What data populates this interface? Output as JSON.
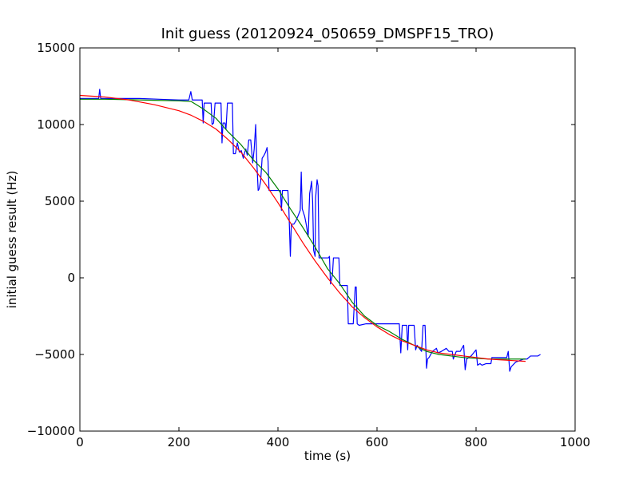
{
  "chart_data": {
    "type": "line",
    "title": "Init guess (20120924_050659_DMSPF15_TRO)",
    "xlabel": "time (s)",
    "ylabel": "initial guess result (Hz)",
    "xlim": [
      0,
      1000
    ],
    "ylim": [
      -10000,
      15000
    ],
    "xticks": [
      0,
      200,
      400,
      600,
      800,
      1000
    ],
    "yticks": [
      -10000,
      -5000,
      0,
      5000,
      10000,
      15000
    ],
    "xtick_labels": [
      "0",
      "200",
      "400",
      "600",
      "800",
      "1000"
    ],
    "ytick_labels": [
      "−10000",
      "−5000",
      "0",
      "5000",
      "10000",
      "15000"
    ],
    "grid": false,
    "legend": "none",
    "series": [
      {
        "color": "#0000ff",
        "points": [
          [
            0,
            11700
          ],
          [
            38,
            11700
          ],
          [
            40,
            12300
          ],
          [
            42,
            11700
          ],
          [
            80,
            11700
          ],
          [
            120,
            11700
          ],
          [
            160,
            11650
          ],
          [
            200,
            11600
          ],
          [
            220,
            11600
          ],
          [
            224,
            12150
          ],
          [
            227,
            11600
          ],
          [
            247,
            11600
          ],
          [
            249,
            10100
          ],
          [
            251,
            11400
          ],
          [
            265,
            11400
          ],
          [
            267,
            10000
          ],
          [
            270,
            10100
          ],
          [
            273,
            11400
          ],
          [
            285,
            11400
          ],
          [
            287,
            8800
          ],
          [
            289,
            10100
          ],
          [
            293,
            10100
          ],
          [
            295,
            9700
          ],
          [
            298,
            11400
          ],
          [
            308,
            11400
          ],
          [
            310,
            8100
          ],
          [
            314,
            8100
          ],
          [
            318,
            8800
          ],
          [
            322,
            8200
          ],
          [
            326,
            8300
          ],
          [
            330,
            7800
          ],
          [
            332,
            8100
          ],
          [
            335,
            8400
          ],
          [
            338,
            8000
          ],
          [
            341,
            9000
          ],
          [
            345,
            9000
          ],
          [
            349,
            7500
          ],
          [
            352,
            8400
          ],
          [
            355,
            10000
          ],
          [
            357,
            7800
          ],
          [
            360,
            5700
          ],
          [
            362,
            5800
          ],
          [
            365,
            6300
          ],
          [
            368,
            7800
          ],
          [
            372,
            8000
          ],
          [
            375,
            8200
          ],
          [
            378,
            8500
          ],
          [
            380,
            7600
          ],
          [
            382,
            5700
          ],
          [
            405,
            5700
          ],
          [
            407,
            4400
          ],
          [
            409,
            5700
          ],
          [
            418,
            5700
          ],
          [
            420,
            5700
          ],
          [
            422,
            4500
          ],
          [
            425,
            1400
          ],
          [
            427,
            3500
          ],
          [
            429,
            3500
          ],
          [
            432,
            3500
          ],
          [
            436,
            3700
          ],
          [
            440,
            4000
          ],
          [
            445,
            4400
          ],
          [
            447,
            6900
          ],
          [
            449,
            4500
          ],
          [
            454,
            4000
          ],
          [
            457,
            3500
          ],
          [
            461,
            2700
          ],
          [
            464,
            5500
          ],
          [
            468,
            6300
          ],
          [
            470,
            5000
          ],
          [
            472,
            1800
          ],
          [
            475,
            1400
          ],
          [
            476,
            5200
          ],
          [
            479,
            6400
          ],
          [
            481,
            6000
          ],
          [
            483,
            1300
          ],
          [
            499,
            1300
          ],
          [
            502,
            1300
          ],
          [
            504,
            1400
          ],
          [
            506,
            -400
          ],
          [
            510,
            200
          ],
          [
            512,
            1300
          ],
          [
            523,
            1300
          ],
          [
            525,
            -500
          ],
          [
            527,
            -500
          ],
          [
            540,
            -500
          ],
          [
            542,
            -3000
          ],
          [
            552,
            -3000
          ],
          [
            556,
            -600
          ],
          [
            558,
            -600
          ],
          [
            560,
            -3000
          ],
          [
            564,
            -3100
          ],
          [
            578,
            -3000
          ],
          [
            620,
            -3000
          ],
          [
            645,
            -3000
          ],
          [
            648,
            -4900
          ],
          [
            651,
            -3100
          ],
          [
            660,
            -3100
          ],
          [
            662,
            -4700
          ],
          [
            664,
            -3100
          ],
          [
            675,
            -3100
          ],
          [
            678,
            -4700
          ],
          [
            681,
            -4400
          ],
          [
            690,
            -4800
          ],
          [
            693,
            -3100
          ],
          [
            697,
            -3100
          ],
          [
            700,
            -5900
          ],
          [
            702,
            -5300
          ],
          [
            705,
            -5200
          ],
          [
            712,
            -4800
          ],
          [
            720,
            -4600
          ],
          [
            723,
            -4900
          ],
          [
            730,
            -4800
          ],
          [
            740,
            -4600
          ],
          [
            745,
            -4800
          ],
          [
            752,
            -4800
          ],
          [
            754,
            -5300
          ],
          [
            760,
            -4800
          ],
          [
            768,
            -4800
          ],
          [
            775,
            -4400
          ],
          [
            778,
            -6000
          ],
          [
            781,
            -5300
          ],
          [
            785,
            -5200
          ],
          [
            790,
            -5100
          ],
          [
            800,
            -4700
          ],
          [
            803,
            -5700
          ],
          [
            808,
            -5600
          ],
          [
            812,
            -5700
          ],
          [
            820,
            -5600
          ],
          [
            830,
            -5600
          ],
          [
            832,
            -5200
          ],
          [
            862,
            -5200
          ],
          [
            865,
            -4800
          ],
          [
            868,
            -6100
          ],
          [
            871,
            -5800
          ],
          [
            880,
            -5500
          ],
          [
            888,
            -5400
          ],
          [
            896,
            -5300
          ],
          [
            903,
            -5300
          ],
          [
            910,
            -5100
          ],
          [
            925,
            -5100
          ],
          [
            930,
            -5000
          ]
        ]
      },
      {
        "color": "#008000",
        "points": [
          [
            0,
            11650
          ],
          [
            50,
            11650
          ],
          [
            100,
            11620
          ],
          [
            150,
            11580
          ],
          [
            200,
            11550
          ],
          [
            225,
            11500
          ],
          [
            250,
            11000
          ],
          [
            275,
            10400
          ],
          [
            300,
            9500
          ],
          [
            325,
            8700
          ],
          [
            350,
            7700
          ],
          [
            375,
            6900
          ],
          [
            400,
            5800
          ],
          [
            425,
            4500
          ],
          [
            450,
            3300
          ],
          [
            475,
            2000
          ],
          [
            500,
            600
          ],
          [
            525,
            -400
          ],
          [
            550,
            -1600
          ],
          [
            575,
            -2500
          ],
          [
            600,
            -3100
          ],
          [
            625,
            -3500
          ],
          [
            650,
            -4000
          ],
          [
            675,
            -4400
          ],
          [
            700,
            -4800
          ],
          [
            725,
            -5000
          ],
          [
            750,
            -5100
          ],
          [
            775,
            -5200
          ],
          [
            800,
            -5250
          ],
          [
            825,
            -5300
          ],
          [
            850,
            -5300
          ],
          [
            900,
            -5300
          ]
        ]
      },
      {
        "color": "#ff0000",
        "points": [
          [
            0,
            11900
          ],
          [
            50,
            11800
          ],
          [
            100,
            11600
          ],
          [
            150,
            11300
          ],
          [
            200,
            10900
          ],
          [
            225,
            10600
          ],
          [
            250,
            10200
          ],
          [
            275,
            9700
          ],
          [
            300,
            9000
          ],
          [
            325,
            8200
          ],
          [
            350,
            7200
          ],
          [
            375,
            6100
          ],
          [
            400,
            4900
          ],
          [
            425,
            3600
          ],
          [
            450,
            2300
          ],
          [
            475,
            1100
          ],
          [
            500,
            0
          ],
          [
            525,
            -1000
          ],
          [
            550,
            -1900
          ],
          [
            575,
            -2600
          ],
          [
            600,
            -3200
          ],
          [
            625,
            -3700
          ],
          [
            650,
            -4100
          ],
          [
            675,
            -4400
          ],
          [
            700,
            -4700
          ],
          [
            725,
            -4900
          ],
          [
            750,
            -5000
          ],
          [
            775,
            -5100
          ],
          [
            800,
            -5200
          ],
          [
            825,
            -5300
          ],
          [
            850,
            -5350
          ],
          [
            875,
            -5400
          ],
          [
            900,
            -5450
          ]
        ]
      }
    ]
  }
}
